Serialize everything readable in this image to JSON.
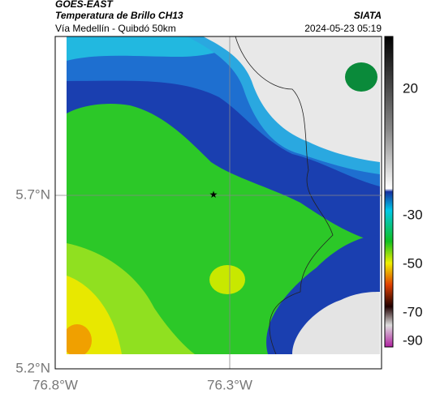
{
  "header": {
    "title": "GOES-EAST",
    "subtitle": "Temperatura de Brillo CH13",
    "location": "Vía Medellín - Quibdó 50km",
    "source": "SIATA",
    "datetime": "2024-05-23 05:19"
  },
  "map": {
    "lat_labels": [
      "5.7°N",
      "5.2°N"
    ],
    "lon_labels": [
      "76.8°W",
      "76.3°W"
    ]
  },
  "colorbar": {
    "ticks": [
      "20",
      "-30",
      "-50",
      "-70",
      "-90"
    ]
  }
}
